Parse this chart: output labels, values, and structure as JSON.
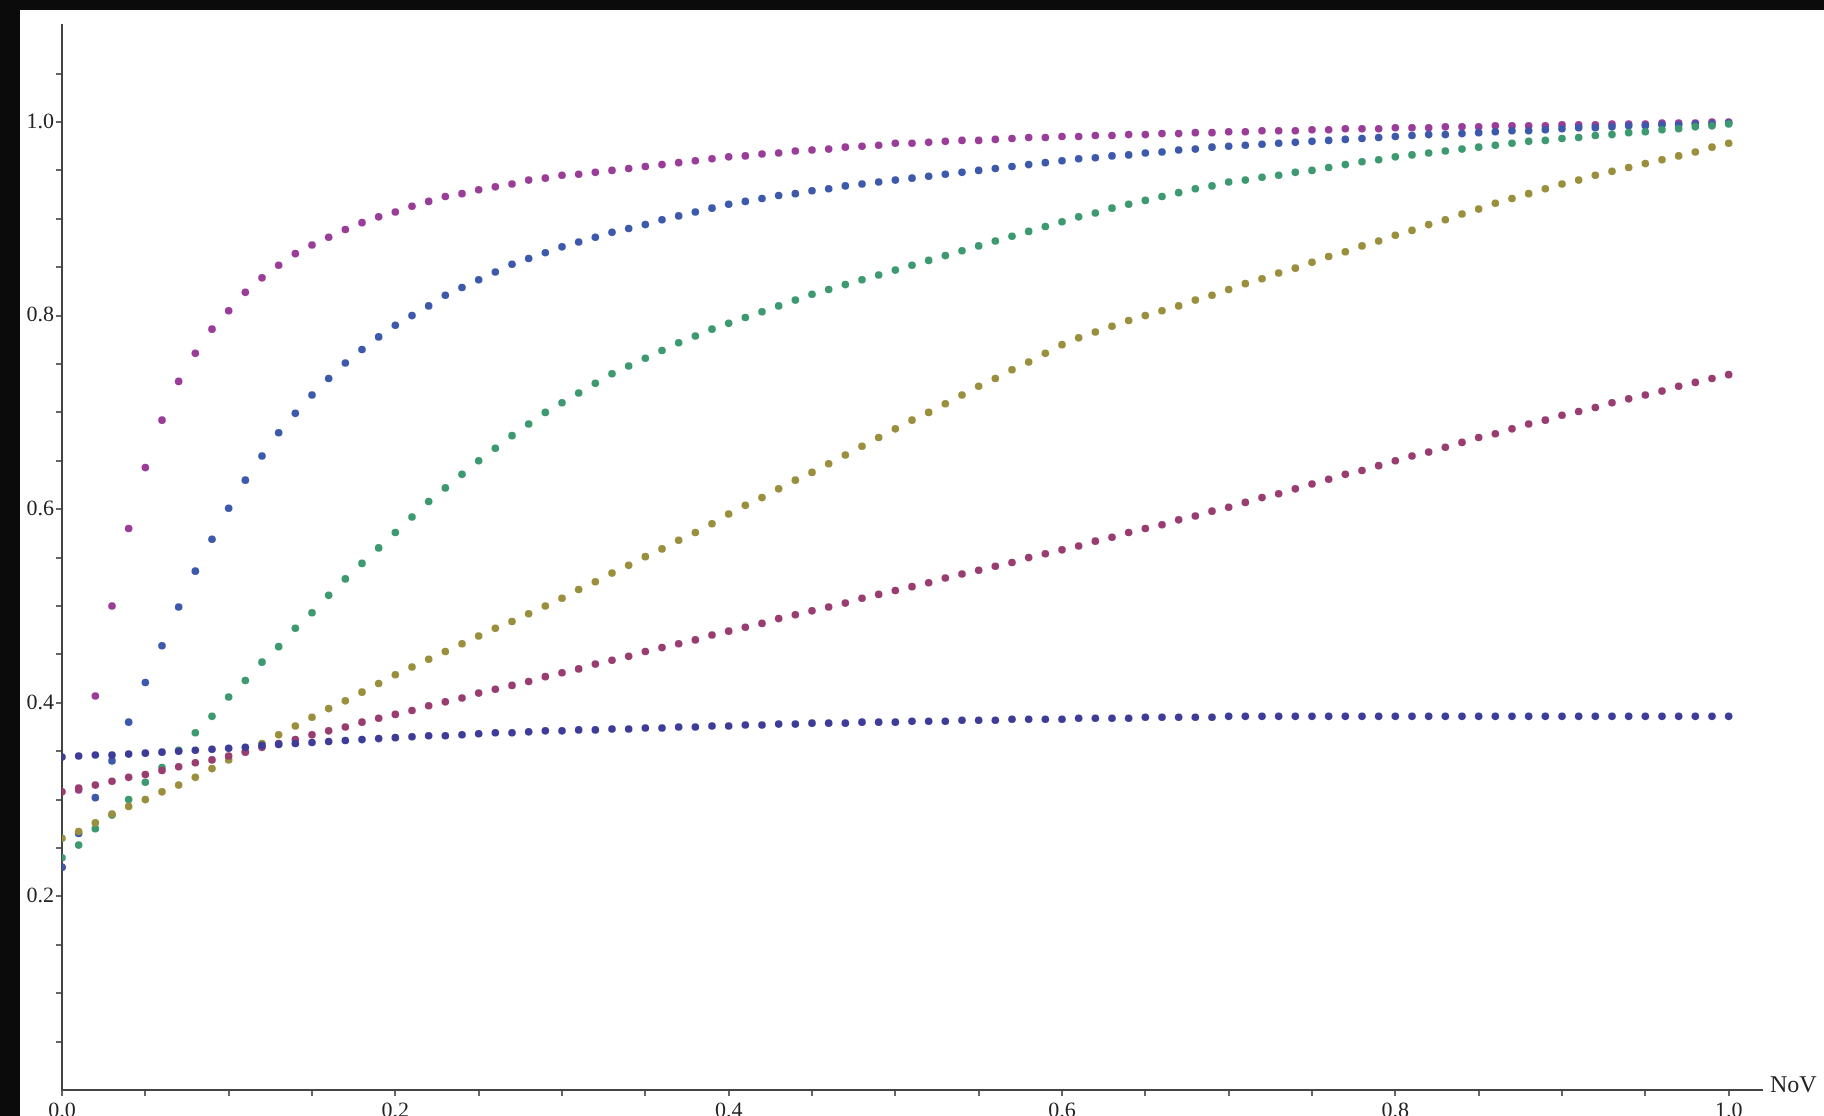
{
  "chart_data": {
    "type": "scatter",
    "xlabel": "NoV",
    "marker": "circle",
    "grid": false,
    "legend": false,
    "xlim": [
      0,
      1.02
    ],
    "ylim": [
      0,
      1.1
    ],
    "xticks": [
      {
        "value": 0,
        "label": "0.0"
      },
      {
        "value": 0.05,
        "label": null
      },
      {
        "value": 0.1,
        "label": null
      },
      {
        "value": 0.15,
        "label": null
      },
      0.2,
      {
        "value": 0.25,
        "label": null
      },
      {
        "value": 0.3,
        "label": null
      },
      {
        "value": 0.35,
        "label": null
      },
      0.4,
      {
        "value": 0.45,
        "label": null
      },
      {
        "value": 0.5,
        "label": null
      },
      {
        "value": 0.55,
        "label": null
      },
      0.6,
      {
        "value": 0.65,
        "label": null
      },
      {
        "value": 0.7,
        "label": null
      },
      {
        "value": 0.75,
        "label": null
      },
      0.8,
      {
        "value": 0.85,
        "label": null
      },
      {
        "value": 0.9,
        "label": null
      },
      {
        "value": 0.95,
        "label": null
      },
      {
        "value": 1,
        "label": "1.0"
      }
    ],
    "yticks": [
      {
        "value": 0.05,
        "label": null
      },
      {
        "value": 0.1,
        "label": null
      },
      {
        "value": 0.15,
        "label": null
      },
      0.2,
      {
        "value": 0.25,
        "label": null
      },
      {
        "value": 0.3,
        "label": null
      },
      {
        "value": 0.35,
        "label": null
      },
      0.4,
      {
        "value": 0.45,
        "label": null
      },
      {
        "value": 0.5,
        "label": null
      },
      {
        "value": 0.55,
        "label": null
      },
      0.6,
      {
        "value": 0.65,
        "label": null
      },
      {
        "value": 0.7,
        "label": null
      },
      {
        "value": 0.75,
        "label": null
      },
      0.8,
      {
        "value": 0.85,
        "label": null
      },
      {
        "value": 0.9,
        "label": null
      },
      {
        "value": 0.95,
        "label": null
      },
      {
        "value": 1,
        "label": "1.0"
      },
      {
        "value": 1.05,
        "label": null
      }
    ],
    "x": [
      0,
      0.01,
      0.02,
      0.03,
      0.04,
      0.05,
      0.06,
      0.07,
      0.08,
      0.09,
      0.1,
      0.11,
      0.12,
      0.13,
      0.14,
      0.15,
      0.16,
      0.17,
      0.18,
      0.19,
      0.2,
      0.21,
      0.22,
      0.23,
      0.24,
      0.25,
      0.26,
      0.27,
      0.28,
      0.29,
      0.3,
      0.31,
      0.32,
      0.33,
      0.34,
      0.35,
      0.36,
      0.37,
      0.38,
      0.39,
      0.4,
      0.41,
      0.42,
      0.43,
      0.44,
      0.45,
      0.46,
      0.47,
      0.48,
      0.49,
      0.5,
      0.51,
      0.52,
      0.53,
      0.54,
      0.55,
      0.56,
      0.57,
      0.58,
      0.59,
      0.6,
      0.61,
      0.62,
      0.63,
      0.64,
      0.65,
      0.66,
      0.67,
      0.68,
      0.69,
      0.7,
      0.71,
      0.72,
      0.73,
      0.74,
      0.75,
      0.76,
      0.77,
      0.78,
      0.79,
      0.8,
      0.81,
      0.82,
      0.83,
      0.84,
      0.85,
      0.86,
      0.87,
      0.88,
      0.89,
      0.9,
      0.91,
      0.92,
      0.93,
      0.94,
      0.95,
      0.96,
      0.97,
      0.98,
      0.99,
      1
    ],
    "series": [
      {
        "color": "#3d3d99",
        "values": [
          0.344,
          0.345,
          0.346,
          0.346,
          0.347,
          0.348,
          0.349,
          0.35,
          0.351,
          0.352,
          0.353,
          0.354,
          0.356,
          0.357,
          0.358,
          0.359,
          0.36,
          0.361,
          0.362,
          0.363,
          0.364,
          0.365,
          0.366,
          0.366,
          0.367,
          0.368,
          0.369,
          0.369,
          0.37,
          0.371,
          0.371,
          0.372,
          0.372,
          0.373,
          0.373,
          0.374,
          0.374,
          0.375,
          0.375,
          0.376,
          0.376,
          0.377,
          0.377,
          0.378,
          0.378,
          0.379,
          0.379,
          0.379,
          0.38,
          0.38,
          0.38,
          0.381,
          0.381,
          0.381,
          0.382,
          0.382,
          0.382,
          0.383,
          0.383,
          0.383,
          0.383,
          0.384,
          0.384,
          0.384,
          0.384,
          0.385,
          0.385,
          0.385,
          0.385,
          0.385,
          0.386,
          0.386,
          0.386,
          0.386,
          0.386,
          0.386,
          0.386,
          0.386,
          0.386,
          0.386,
          0.386,
          0.386,
          0.386,
          0.386,
          0.386,
          0.386,
          0.386,
          0.386,
          0.386,
          0.386,
          0.386,
          0.386,
          0.386,
          0.386,
          0.386,
          0.386,
          0.386,
          0.386,
          0.386,
          0.386,
          0.386
        ]
      },
      {
        "color": "#993d70",
        "values": [
          0.308,
          0.312,
          0.315,
          0.319,
          0.323,
          0.326,
          0.33,
          0.334,
          0.338,
          0.341,
          0.345,
          0.349,
          0.354,
          0.358,
          0.362,
          0.367,
          0.371,
          0.375,
          0.38,
          0.384,
          0.388,
          0.392,
          0.397,
          0.401,
          0.405,
          0.41,
          0.414,
          0.418,
          0.422,
          0.427,
          0.431,
          0.435,
          0.44,
          0.444,
          0.448,
          0.453,
          0.457,
          0.461,
          0.465,
          0.47,
          0.474,
          0.478,
          0.482,
          0.487,
          0.491,
          0.495,
          0.499,
          0.503,
          0.508,
          0.512,
          0.516,
          0.52,
          0.524,
          0.529,
          0.533,
          0.537,
          0.541,
          0.545,
          0.55,
          0.554,
          0.558,
          0.562,
          0.567,
          0.571,
          0.576,
          0.58,
          0.584,
          0.589,
          0.593,
          0.598,
          0.602,
          0.607,
          0.612,
          0.616,
          0.621,
          0.626,
          0.631,
          0.636,
          0.64,
          0.645,
          0.65,
          0.655,
          0.659,
          0.664,
          0.669,
          0.674,
          0.678,
          0.683,
          0.688,
          0.692,
          0.697,
          0.701,
          0.705,
          0.71,
          0.714,
          0.718,
          0.722,
          0.727,
          0.731,
          0.735,
          0.739
        ]
      },
      {
        "color": "#998f3d",
        "values": [
          0.26,
          0.267,
          0.276,
          0.285,
          0.293,
          0.3,
          0.308,
          0.315,
          0.323,
          0.332,
          0.341,
          0.35,
          0.358,
          0.367,
          0.376,
          0.385,
          0.394,
          0.402,
          0.411,
          0.42,
          0.429,
          0.437,
          0.445,
          0.453,
          0.461,
          0.469,
          0.477,
          0.484,
          0.492,
          0.5,
          0.508,
          0.517,
          0.525,
          0.534,
          0.542,
          0.551,
          0.559,
          0.568,
          0.576,
          0.585,
          0.595,
          0.604,
          0.612,
          0.621,
          0.63,
          0.638,
          0.647,
          0.656,
          0.665,
          0.674,
          0.683,
          0.692,
          0.7,
          0.709,
          0.718,
          0.727,
          0.735,
          0.744,
          0.752,
          0.761,
          0.77,
          0.777,
          0.783,
          0.789,
          0.795,
          0.8,
          0.805,
          0.81,
          0.816,
          0.821,
          0.827,
          0.833,
          0.838,
          0.844,
          0.849,
          0.855,
          0.861,
          0.866,
          0.872,
          0.877,
          0.883,
          0.888,
          0.894,
          0.899,
          0.905,
          0.91,
          0.916,
          0.921,
          0.926,
          0.931,
          0.936,
          0.94,
          0.945,
          0.949,
          0.953,
          0.957,
          0.961,
          0.965,
          0.969,
          0.974,
          0.978
        ]
      },
      {
        "color": "#3d9970",
        "values": [
          0.24,
          0.253,
          0.27,
          0.284,
          0.3,
          0.318,
          0.333,
          0.351,
          0.369,
          0.386,
          0.406,
          0.423,
          0.442,
          0.458,
          0.477,
          0.493,
          0.511,
          0.528,
          0.544,
          0.56,
          0.576,
          0.592,
          0.608,
          0.622,
          0.636,
          0.65,
          0.663,
          0.676,
          0.688,
          0.7,
          0.71,
          0.72,
          0.73,
          0.74,
          0.748,
          0.756,
          0.764,
          0.772,
          0.779,
          0.786,
          0.792,
          0.798,
          0.804,
          0.81,
          0.816,
          0.822,
          0.827,
          0.832,
          0.837,
          0.842,
          0.847,
          0.852,
          0.857,
          0.862,
          0.867,
          0.872,
          0.877,
          0.882,
          0.887,
          0.892,
          0.897,
          0.902,
          0.906,
          0.911,
          0.915,
          0.919,
          0.923,
          0.927,
          0.931,
          0.934,
          0.938,
          0.94,
          0.943,
          0.945,
          0.948,
          0.95,
          0.953,
          0.956,
          0.959,
          0.961,
          0.964,
          0.966,
          0.968,
          0.97,
          0.972,
          0.974,
          0.976,
          0.978,
          0.98,
          0.981,
          0.983,
          0.984,
          0.986,
          0.987,
          0.989,
          0.99,
          0.992,
          0.993,
          0.995,
          0.996,
          0.998
        ]
      },
      {
        "color": "#3d59ab",
        "values": [
          0.23,
          0.265,
          0.302,
          0.34,
          0.38,
          0.421,
          0.459,
          0.499,
          0.536,
          0.569,
          0.601,
          0.63,
          0.655,
          0.679,
          0.699,
          0.718,
          0.735,
          0.751,
          0.765,
          0.778,
          0.79,
          0.8,
          0.81,
          0.821,
          0.829,
          0.837,
          0.845,
          0.853,
          0.859,
          0.865,
          0.871,
          0.876,
          0.881,
          0.886,
          0.89,
          0.894,
          0.899,
          0.903,
          0.907,
          0.911,
          0.915,
          0.918,
          0.921,
          0.924,
          0.926,
          0.929,
          0.931,
          0.934,
          0.936,
          0.938,
          0.94,
          0.942,
          0.944,
          0.946,
          0.948,
          0.95,
          0.952,
          0.954,
          0.956,
          0.958,
          0.96,
          0.962,
          0.963,
          0.965,
          0.966,
          0.968,
          0.969,
          0.971,
          0.972,
          0.974,
          0.975,
          0.976,
          0.977,
          0.978,
          0.979,
          0.98,
          0.981,
          0.982,
          0.983,
          0.984,
          0.985,
          0.986,
          0.987,
          0.987,
          0.988,
          0.989,
          0.99,
          0.991,
          0.991,
          0.992,
          0.993,
          0.994,
          0.994,
          0.995,
          0.996,
          0.996,
          0.997,
          0.997,
          0.998,
          0.998,
          0.999
        ]
      },
      {
        "color": "#993d99",
        "values": [
          0.23,
          0.31,
          0.407,
          0.5,
          0.58,
          0.643,
          0.692,
          0.732,
          0.761,
          0.786,
          0.805,
          0.824,
          0.839,
          0.852,
          0.864,
          0.873,
          0.881,
          0.889,
          0.896,
          0.902,
          0.907,
          0.913,
          0.918,
          0.923,
          0.926,
          0.93,
          0.933,
          0.936,
          0.94,
          0.942,
          0.945,
          0.946,
          0.948,
          0.95,
          0.952,
          0.954,
          0.956,
          0.958,
          0.96,
          0.962,
          0.964,
          0.965,
          0.967,
          0.968,
          0.97,
          0.971,
          0.972,
          0.974,
          0.975,
          0.976,
          0.978,
          0.978,
          0.979,
          0.98,
          0.981,
          0.981,
          0.982,
          0.983,
          0.984,
          0.984,
          0.985,
          0.985,
          0.986,
          0.986,
          0.987,
          0.987,
          0.988,
          0.988,
          0.989,
          0.989,
          0.99,
          0.99,
          0.991,
          0.991,
          0.991,
          0.992,
          0.992,
          0.993,
          0.993,
          0.993,
          0.994,
          0.994,
          0.994,
          0.995,
          0.995,
          0.995,
          0.996,
          0.996,
          0.996,
          0.996,
          0.997,
          0.997,
          0.997,
          0.998,
          0.998,
          0.998,
          0.999,
          0.999,
          0.999,
          1,
          1
        ]
      }
    ]
  }
}
